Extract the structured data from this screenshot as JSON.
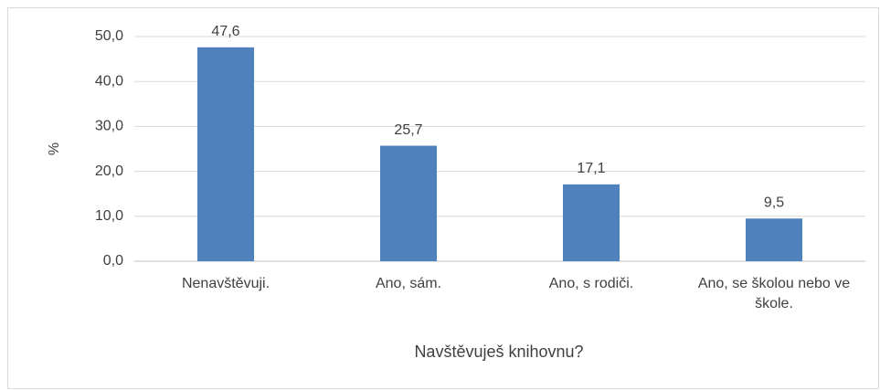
{
  "chart_data": {
    "type": "bar",
    "x_label": "Navštěvuješ knihovnu?",
    "y_label": "%",
    "categories": [
      "Nenavštěvuji.",
      "Ano, sám.",
      "Ano, s rodiči.",
      "Ano, se školou nebo ve škole."
    ],
    "values": [
      47.6,
      25.7,
      17.1,
      9.5
    ],
    "value_labels": [
      "47,6",
      "25,7",
      "17,1",
      "9,5"
    ],
    "color": "#4f81bd",
    "ylim": [
      0,
      50
    ],
    "yticks": [
      {
        "value": 0,
        "label": "0,0"
      },
      {
        "value": 10,
        "label": "10,0"
      },
      {
        "value": 20,
        "label": "20,0"
      },
      {
        "value": 30,
        "label": "30,0"
      },
      {
        "value": 40,
        "label": "40,0"
      },
      {
        "value": 50,
        "label": "50,0"
      }
    ],
    "grid": true
  }
}
